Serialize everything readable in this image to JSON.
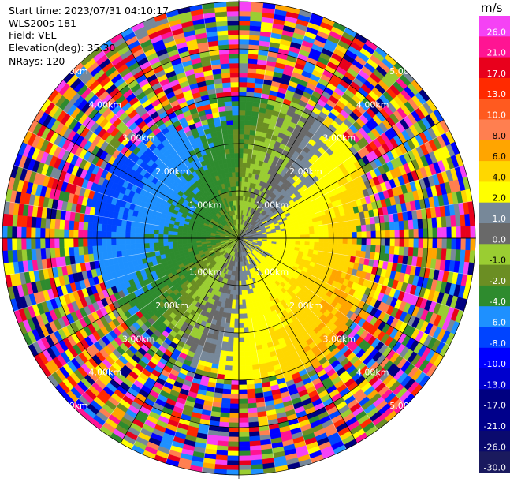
{
  "header": {
    "start_time": "Start time: 2023/07/31 04:10:17",
    "instrument": "WLS200s-181",
    "field": "Field: VEL",
    "elevation": "Elevation(deg): 35.30",
    "nrays": "NRays: 120"
  },
  "chart_data": {
    "type": "heatmap",
    "projection": "polar-ppi",
    "field": "VEL",
    "unit": "m/s",
    "nrays": 120,
    "range_labels": [
      "1.00km",
      "2.00km",
      "3.00km",
      "4.00km",
      "5.00km"
    ],
    "range_label_corner": [
      "1.00km",
      "1.00km",
      "2.00km",
      "2.00km",
      "3.00km",
      "3.00km",
      "4.00km",
      "4.00km",
      "4.00km",
      "4.00km",
      "5.00km",
      "5.00km",
      "5.00km",
      "5.00km"
    ],
    "rings_km": [
      1,
      2,
      3,
      4,
      5
    ],
    "max_range_km": 5.0,
    "colorbar": {
      "min": -30.0,
      "max": 30.0,
      "tick_labels": [
        "26.0",
        "21.0",
        "17.0",
        "13.0",
        "10.0",
        "8.0",
        "6.0",
        "4.0",
        "2.0",
        "1.0",
        "0.0",
        "-1.0",
        "-2.0",
        "-4.0",
        "-6.0",
        "-8.0",
        "-10.0",
        "-13.0",
        "-17.0",
        "-21.0",
        "-26.0",
        "-30.0"
      ],
      "colors": [
        "#f542f5",
        "#ff1493",
        "#e8001c",
        "#ff2a00",
        "#ff5a1f",
        "#ff7f50",
        "#ffa500",
        "#ffd700",
        "#ffff00",
        "#778899",
        "#696969",
        "#9acd32",
        "#6b8e23",
        "#2e8b2e",
        "#1e90ff",
        "#0044ff",
        "#0000ff",
        "#0000cd",
        "#000080",
        "#00008b",
        "#0a0a6e",
        "#1a1a5e"
      ]
    }
  }
}
